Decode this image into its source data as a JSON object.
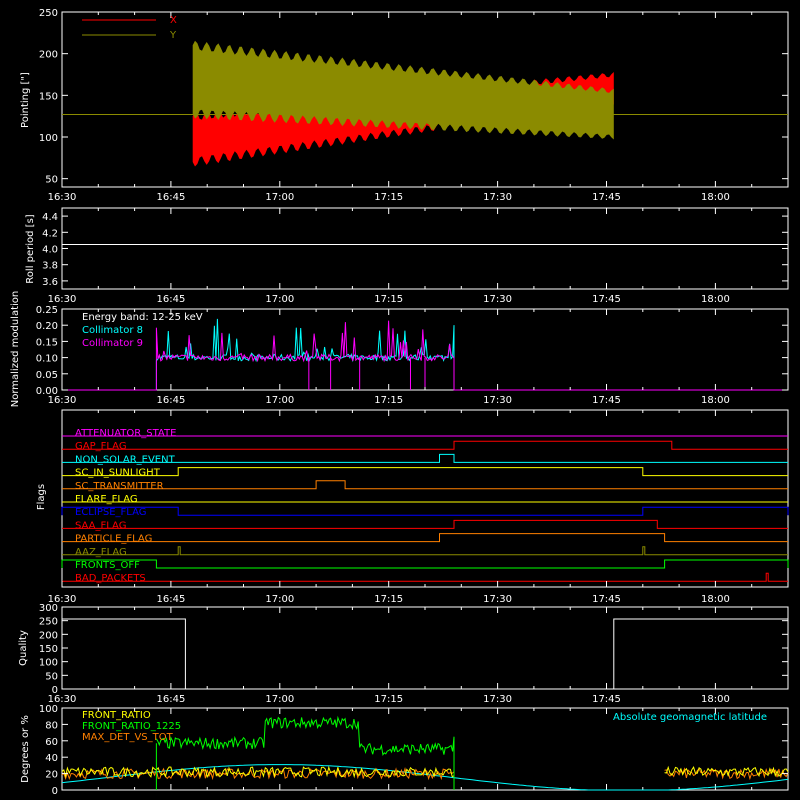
{
  "colors": {
    "background": "#000000",
    "foreground": "#ffffff",
    "pointing_x": "#ff0000",
    "pointing_y": "#8b8b00",
    "collimator_8": "#00ffff",
    "collimator_9": "#ff00ff",
    "front_ratio": "#ffff00",
    "front_ratio_1225": "#00ff00",
    "max_det_vs_tot": "#ff8000",
    "geomag": "#00ffff"
  },
  "time_axis": {
    "start": "16:30",
    "end": "18:10",
    "tick_labels": [
      "16:30",
      "16:45",
      "17:00",
      "17:15",
      "17:30",
      "17:45",
      "18:00"
    ]
  },
  "chart_data": [
    {
      "id": "pointing",
      "type": "line",
      "ylabel": "Pointing [\"]",
      "ylim": [
        40,
        250
      ],
      "yticks": [
        50,
        100,
        150,
        200,
        250
      ],
      "legend": {
        "placement": "top-left",
        "entries": [
          "X",
          "Y"
        ]
      },
      "series": [
        {
          "name": "X",
          "color_key": "pointing_x",
          "baseline": 127,
          "active": [
            "16:48",
            "17:46"
          ],
          "upper_start": 125,
          "upper_end": 175,
          "lower_start": 70,
          "lower_end": 142
        },
        {
          "name": "Y",
          "color_key": "pointing_y",
          "baseline": 127,
          "active": [
            "16:48",
            "17:46"
          ],
          "upper_start": 210,
          "upper_end": 155,
          "lower_start": 128,
          "lower_end": 100
        }
      ]
    },
    {
      "id": "roll_period",
      "type": "line",
      "ylabel": "Roll period [s]",
      "ylim": [
        3.5,
        4.5
      ],
      "yticks": [
        3.6,
        3.8,
        4.0,
        4.2,
        4.4
      ],
      "series": [
        {
          "name": "",
          "color_key": "foreground",
          "value": 4.05
        }
      ]
    },
    {
      "id": "modulation",
      "type": "line",
      "ylabel": "Normalized modulation",
      "ylim": [
        0,
        0.25
      ],
      "yticks": [
        0.0,
        0.05,
        0.1,
        0.15,
        0.2,
        0.25
      ],
      "annotations": [
        "Energy band: 12-25 keV"
      ],
      "legend": {
        "placement": "top-left",
        "entries": [
          "Collimator 8",
          "Collimator 9"
        ]
      },
      "series": [
        {
          "name": "Collimator 8",
          "color_key": "collimator_8",
          "active": [
            "16:43",
            "17:24"
          ],
          "level": 0.1
        },
        {
          "name": "Collimator 9",
          "color_key": "collimator_9",
          "active": [
            "16:43",
            "17:24"
          ],
          "level": 0.1,
          "dropouts": [
            "17:04",
            "17:07",
            "17:11",
            "17:18",
            "17:20"
          ]
        }
      ]
    },
    {
      "id": "flags",
      "type": "line",
      "ylabel": "Flags",
      "flags": [
        {
          "name": "ATTENUATOR_STATE",
          "color": "#ff00ff",
          "segments": []
        },
        {
          "name": "GAP_FLAG",
          "color": "#ff0000",
          "segments": [
            [
              "17:24",
              "17:54"
            ]
          ]
        },
        {
          "name": "NON_SOLAR_EVENT",
          "color": "#00ffff",
          "segments": [
            [
              "17:22",
              "17:24"
            ]
          ]
        },
        {
          "name": "SC_IN_SUNLIGHT",
          "color": "#ffff00",
          "segments": [
            [
              "16:46",
              "17:50"
            ]
          ]
        },
        {
          "name": "SC_TRANSMITTER",
          "color": "#ff8000",
          "segments": [
            [
              "17:05",
              "17:09"
            ]
          ]
        },
        {
          "name": "FLARE_FLAG",
          "color": "#ffff00",
          "segments": []
        },
        {
          "name": "ECLIPSE_FLAG",
          "color": "#0000ff",
          "segments": [
            [
              "16:30",
              "16:46"
            ],
            [
              "17:50",
              "18:10"
            ]
          ]
        },
        {
          "name": "SAA_FLAG",
          "color": "#ff0000",
          "segments": [
            [
              "17:24",
              "17:52"
            ]
          ]
        },
        {
          "name": "PARTICLE_FLAG",
          "color": "#ff8000",
          "segments": [
            [
              "17:22",
              "17:53"
            ]
          ]
        },
        {
          "name": "AAZ_FLAG",
          "color": "#8b8b00",
          "segments": [
            [
              "16:46",
              "16:46"
            ],
            [
              "17:50",
              "17:50"
            ]
          ]
        },
        {
          "name": "FRONTS_OFF",
          "color": "#00ff00",
          "segments": [
            [
              "16:30",
              "16:43"
            ],
            [
              "17:53",
              "18:10"
            ]
          ]
        },
        {
          "name": "BAD_PACKETS",
          "color": "#ff0000",
          "segments": [
            [
              "18:07",
              "18:07"
            ]
          ]
        }
      ]
    },
    {
      "id": "quality",
      "type": "line",
      "ylabel": "Quality",
      "ylim": [
        0,
        300
      ],
      "yticks": [
        0,
        50,
        100,
        150,
        200,
        250,
        300
      ],
      "series": [
        {
          "name": "",
          "color_key": "foreground",
          "steps": [
            [
              "16:30",
              256
            ],
            [
              "16:47",
              0
            ],
            [
              "17:46",
              256
            ],
            [
              "18:10",
              256
            ]
          ]
        }
      ]
    },
    {
      "id": "ratios",
      "type": "line",
      "ylabel": "Degrees or %",
      "ylim": [
        0,
        100
      ],
      "yticks": [
        0,
        20,
        40,
        60,
        80,
        100
      ],
      "legend": {
        "placement": "top-left",
        "entries": [
          "FRONT_RATIO",
          "FRONT_RATIO_1225",
          "MAX_DET_VS_TOT"
        ]
      },
      "annotations": [
        "Absolute geomagnetic latitude"
      ],
      "series": [
        {
          "name": "FRONT_RATIO",
          "color_key": "front_ratio",
          "level": 22
        },
        {
          "name": "FRONT_RATIO_1225",
          "color_key": "front_ratio_1225",
          "active": [
            "16:43",
            "17:24"
          ],
          "steps": [
            [
              "16:43",
              57
            ],
            [
              "16:58",
              82
            ],
            [
              "17:11",
              50
            ],
            [
              "17:24",
              65
            ]
          ]
        },
        {
          "name": "MAX_DET_VS_TOT",
          "color_key": "max_det_vs_tot",
          "level": 20
        },
        {
          "name": "Absolute geomagnetic latitude",
          "color_key": "geomag"
        }
      ]
    }
  ]
}
